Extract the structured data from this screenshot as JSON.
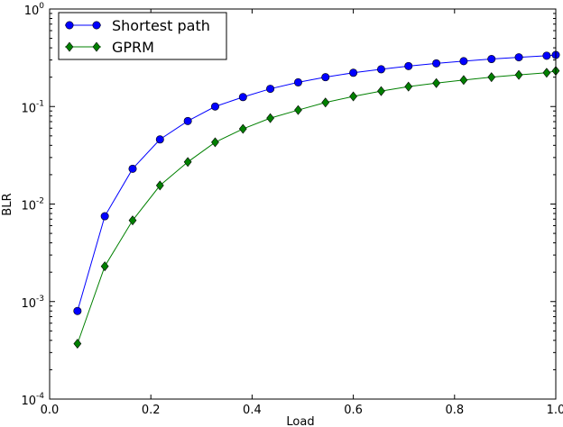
{
  "chart_data": {
    "type": "line",
    "xlabel": "Load",
    "ylabel": "BLR",
    "xlim": [
      0.0,
      1.0
    ],
    "ylim": [
      0.0001,
      1
    ],
    "yscale": "log",
    "grid": false,
    "legend_position": "top-left",
    "x_ticks": [
      {
        "value": 0.0,
        "label": "0.0"
      },
      {
        "value": 0.2,
        "label": "0.2"
      },
      {
        "value": 0.4,
        "label": "0.4"
      },
      {
        "value": 0.6,
        "label": "0.6"
      },
      {
        "value": 0.8,
        "label": "0.8"
      },
      {
        "value": 1.0,
        "label": "1.0"
      }
    ],
    "y_ticks": [
      {
        "value": 0.0001,
        "base": "10",
        "exp": "-4"
      },
      {
        "value": 0.001,
        "base": "10",
        "exp": "-3"
      },
      {
        "value": 0.01,
        "base": "10",
        "exp": "-2"
      },
      {
        "value": 0.1,
        "base": "10",
        "exp": "-1"
      },
      {
        "value": 1,
        "base": "10",
        "exp": "0"
      }
    ],
    "x": [
      0.055,
      0.109,
      0.164,
      0.218,
      0.273,
      0.327,
      0.382,
      0.436,
      0.491,
      0.545,
      0.6,
      0.655,
      0.709,
      0.764,
      0.818,
      0.873,
      0.927,
      0.982,
      1.0
    ],
    "series": [
      {
        "name": "Shortest path",
        "color": "#0000ff",
        "marker": "circle",
        "values": [
          0.0008,
          0.0075,
          0.023,
          0.046,
          0.071,
          0.1,
          0.125,
          0.152,
          0.177,
          0.2,
          0.222,
          0.241,
          0.26,
          0.277,
          0.292,
          0.307,
          0.32,
          0.332,
          0.338
        ]
      },
      {
        "name": "GPRM",
        "color": "#008000",
        "marker": "diamond",
        "values": [
          0.00037,
          0.0023,
          0.0068,
          0.0155,
          0.027,
          0.043,
          0.059,
          0.076,
          0.092,
          0.11,
          0.127,
          0.144,
          0.16,
          0.174,
          0.187,
          0.2,
          0.211,
          0.222,
          0.232
        ]
      }
    ]
  }
}
